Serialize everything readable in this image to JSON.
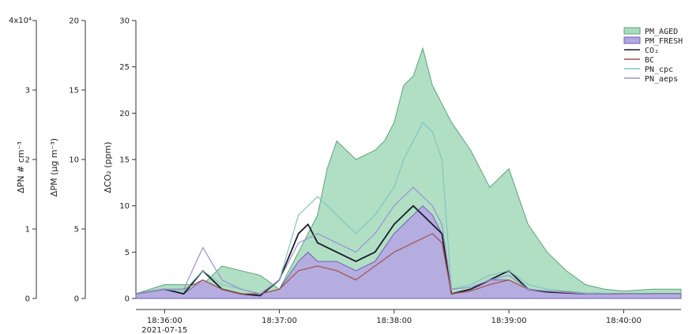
{
  "chart_data": {
    "type": "area",
    "x_unit": "time",
    "x_tick_labels": [
      "18:36:00",
      "18:37:00",
      "18:38:00",
      "18:39:00",
      "18:40:00"
    ],
    "x_date_label": "2021-07-15",
    "x_range": [
      "18:35:45",
      "18:40:30"
    ],
    "axes": [
      {
        "id": "pn",
        "label": "ΔPN # cm⁻³",
        "range": [
          0,
          40000
        ],
        "ticks": [
          "0",
          "1",
          "2",
          "3",
          ""
        ],
        "multiplier": "4x10⁴",
        "ticks_values": [
          0,
          10000,
          20000,
          30000,
          40000
        ]
      },
      {
        "id": "pm",
        "label": "ΔPM (μg m⁻³)",
        "range": [
          0,
          20
        ],
        "ticks": [
          "0",
          "5",
          "10",
          "15",
          "20"
        ],
        "ticks_values": [
          0,
          5,
          10,
          15,
          20
        ]
      },
      {
        "id": "co2",
        "label": "ΔCO₂ (ppm)",
        "range": [
          0,
          30
        ],
        "ticks": [
          "0",
          "5",
          "10",
          "15",
          "20",
          "25",
          "30"
        ],
        "ticks_values": [
          0,
          5,
          10,
          15,
          20,
          25,
          30
        ]
      }
    ],
    "legend_position": "top-right",
    "series": [
      {
        "name": "PM_AGED",
        "kind": "area",
        "axis": "co2",
        "color": "#a9dcbc",
        "stroke": "#5aa57a",
        "x": [
          "18:35:45",
          "18:36:00",
          "18:36:20",
          "18:36:30",
          "18:36:40",
          "18:36:50",
          "18:37:00",
          "18:37:10",
          "18:37:20",
          "18:37:25",
          "18:37:30",
          "18:37:40",
          "18:37:50",
          "18:37:55",
          "18:38:00",
          "18:38:05",
          "18:38:10",
          "18:38:15",
          "18:38:20",
          "18:38:30",
          "18:38:40",
          "18:38:50",
          "18:39:00",
          "18:39:10",
          "18:39:20",
          "18:39:30",
          "18:39:40",
          "18:39:50",
          "18:40:00",
          "18:40:15",
          "18:40:30"
        ],
        "y": [
          0.5,
          1.5,
          1.5,
          3.5,
          3,
          2.5,
          1,
          5,
          9,
          14,
          17,
          15,
          16,
          17,
          19,
          23,
          24,
          27,
          23,
          19,
          16,
          12,
          14,
          8,
          5,
          3,
          1.5,
          1,
          0.8,
          1,
          1
        ]
      },
      {
        "name": "PM_FRESH",
        "kind": "area",
        "axis": "co2",
        "color": "#b6a6e3",
        "stroke": "#6e5fb8",
        "x": [
          "18:35:45",
          "18:36:00",
          "18:36:10",
          "18:36:20",
          "18:36:30",
          "18:36:40",
          "18:36:50",
          "18:37:00",
          "18:37:10",
          "18:37:15",
          "18:37:20",
          "18:37:30",
          "18:37:40",
          "18:37:50",
          "18:38:00",
          "18:38:05",
          "18:38:10",
          "18:38:15",
          "18:38:20",
          "18:38:25",
          "18:38:30",
          "18:38:40",
          "18:38:50",
          "18:39:00",
          "18:39:10",
          "18:39:20",
          "18:39:40",
          "18:40:00",
          "18:40:30"
        ],
        "y": [
          0.5,
          1,
          0.5,
          2,
          1,
          0.5,
          0.5,
          1,
          4,
          5,
          4,
          4,
          3,
          4,
          7,
          8,
          9,
          10,
          9,
          7,
          0.5,
          1,
          2,
          2,
          1,
          0.8,
          0.5,
          0.5,
          0.5
        ]
      },
      {
        "name": "CO₂",
        "kind": "line",
        "axis": "co2",
        "color": "#1a1a2e",
        "x": [
          "18:35:45",
          "18:36:00",
          "18:36:10",
          "18:36:20",
          "18:36:30",
          "18:36:40",
          "18:36:50",
          "18:37:00",
          "18:37:10",
          "18:37:15",
          "18:37:20",
          "18:37:30",
          "18:37:40",
          "18:37:50",
          "18:38:00",
          "18:38:05",
          "18:38:10",
          "18:38:15",
          "18:38:20",
          "18:38:25",
          "18:38:30",
          "18:38:40",
          "18:38:50",
          "18:39:00",
          "18:39:10",
          "18:39:20",
          "18:39:40",
          "18:40:00",
          "18:40:30"
        ],
        "y": [
          0.5,
          1,
          0.5,
          3,
          1,
          0.5,
          0.3,
          2,
          7,
          8,
          6,
          5,
          4,
          5,
          8,
          9,
          10,
          9,
          8,
          7,
          0.5,
          1,
          2,
          3,
          1,
          0.7,
          0.5,
          0.5,
          0.5
        ]
      },
      {
        "name": "BC",
        "kind": "line",
        "axis": "co2",
        "color": "#a0524a",
        "x": [
          "18:35:45",
          "18:36:00",
          "18:36:10",
          "18:36:20",
          "18:36:30",
          "18:36:40",
          "18:36:50",
          "18:37:00",
          "18:37:10",
          "18:37:20",
          "18:37:30",
          "18:37:40",
          "18:37:50",
          "18:38:00",
          "18:38:10",
          "18:38:20",
          "18:38:25",
          "18:38:30",
          "18:38:40",
          "18:38:50",
          "18:39:00",
          "18:39:10",
          "18:39:20",
          "18:39:40",
          "18:40:00",
          "18:40:30"
        ],
        "y": [
          0.5,
          1,
          1,
          2,
          1,
          0.5,
          0.5,
          1,
          3,
          3.5,
          3,
          2,
          3.5,
          5,
          6,
          7,
          6,
          0.5,
          0.8,
          1.5,
          2,
          1,
          0.8,
          0.6,
          0.5,
          0.5
        ]
      },
      {
        "name": "PN_cpc",
        "kind": "line",
        "axis": "co2",
        "color": "#7fc6c2",
        "x": [
          "18:35:45",
          "18:36:00",
          "18:36:10",
          "18:36:20",
          "18:36:30",
          "18:36:40",
          "18:36:50",
          "18:37:00",
          "18:37:10",
          "18:37:20",
          "18:37:30",
          "18:37:40",
          "18:37:50",
          "18:38:00",
          "18:38:05",
          "18:38:10",
          "18:38:15",
          "18:38:20",
          "18:38:25",
          "18:38:30",
          "18:38:40",
          "18:38:50",
          "18:39:00",
          "18:39:10",
          "18:39:20",
          "18:39:40",
          "18:40:00",
          "18:40:30"
        ],
        "y": [
          0.5,
          1,
          0.8,
          3,
          1.5,
          1,
          0.5,
          2,
          9,
          11,
          9,
          7,
          9,
          12,
          15,
          17,
          19,
          18,
          15,
          1,
          1.5,
          2.5,
          3,
          1.5,
          1,
          0.6,
          0.5,
          0.5
        ]
      },
      {
        "name": "PN_aeps",
        "kind": "line",
        "axis": "co2",
        "color": "#9b8fd6",
        "x": [
          "18:35:45",
          "18:36:00",
          "18:36:10",
          "18:36:20",
          "18:36:30",
          "18:36:40",
          "18:36:50",
          "18:37:00",
          "18:37:10",
          "18:37:20",
          "18:37:30",
          "18:37:40",
          "18:37:50",
          "18:38:00",
          "18:38:05",
          "18:38:10",
          "18:38:15",
          "18:38:20",
          "18:38:25",
          "18:38:30",
          "18:38:40",
          "18:38:50",
          "18:39:00",
          "18:39:10",
          "18:39:20",
          "18:39:40",
          "18:40:00",
          "18:40:30"
        ],
        "y": [
          0.5,
          1,
          1,
          5.5,
          2,
          1,
          0.5,
          2,
          6,
          7,
          6,
          5,
          7,
          10,
          11,
          12,
          11,
          10,
          8,
          1,
          1.2,
          2,
          2.5,
          1,
          0.8,
          0.5,
          0.5,
          0.5
        ]
      }
    ]
  }
}
